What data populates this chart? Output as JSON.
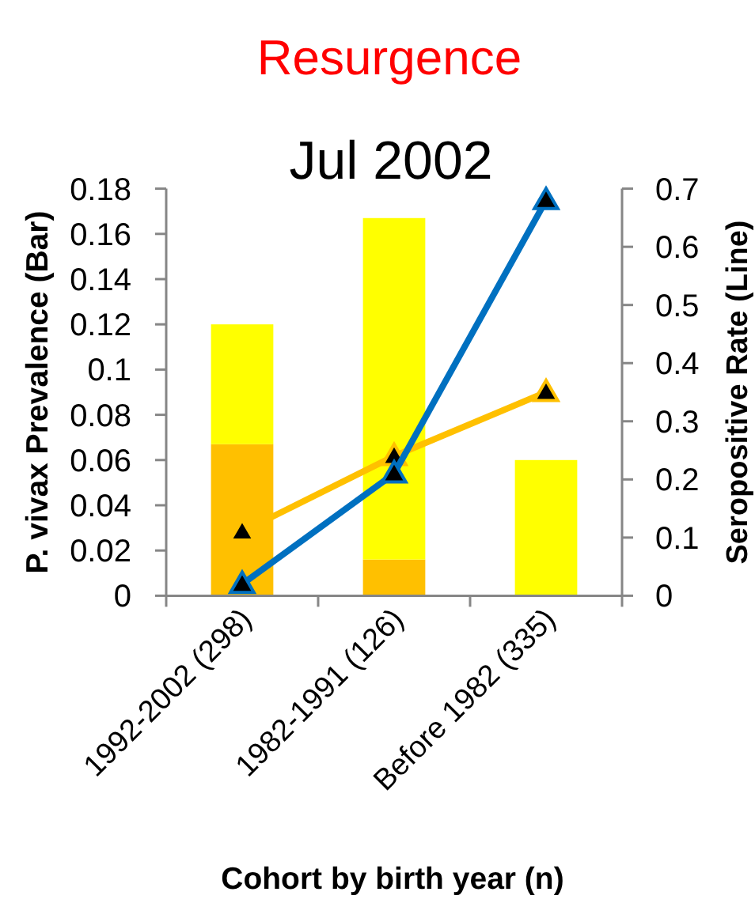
{
  "chart_data": {
    "type": "bar",
    "title": "Resurgence",
    "subtitle": "Jul 2002",
    "xlabel": "Cohort by birth year (n)",
    "ylabel": "P. vivax Prevalence (Bar)",
    "y2label": "Seropositive Rate (Line)",
    "categories": [
      "1992-2002 (298)",
      "1982-1991 (126)",
      "Before 1982 (335)"
    ],
    "stacked": true,
    "series": [
      {
        "color": "#ffc000",
        "values": [
          0.067,
          0.016,
          0
        ]
      },
      {
        "color": "#ffff00",
        "values": [
          0.053,
          0.151,
          0.06
        ]
      },
      {
        "type": "line",
        "axis": "y2",
        "color": "#ffc000",
        "marker": "triangle",
        "values": [
          0.11,
          0.24,
          0.35
        ]
      },
      {
        "type": "line",
        "axis": "y2",
        "color": "#0070c0",
        "marker": "triangle",
        "values": [
          0.02,
          0.21,
          0.68
        ]
      }
    ],
    "ylim": [
      0,
      0.18
    ],
    "yticks": [
      0,
      0.02,
      0.04,
      0.06,
      0.08,
      0.1,
      0.12,
      0.14,
      0.16,
      0.18
    ],
    "y2lim": [
      0,
      0.7
    ],
    "y2ticks": [
      0,
      0.1,
      0.2,
      0.3,
      0.4,
      0.5,
      0.6,
      0.7
    ]
  }
}
